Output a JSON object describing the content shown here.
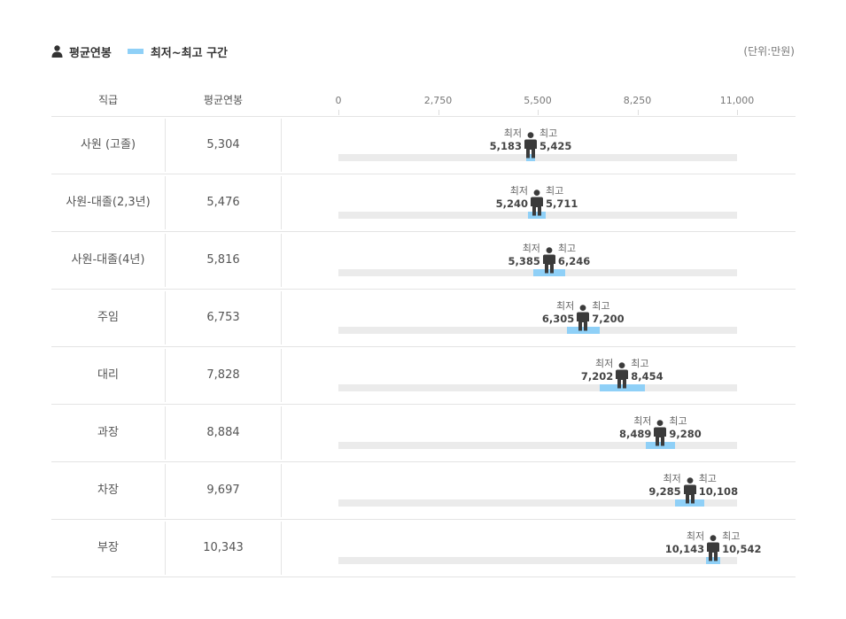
{
  "legend": {
    "avg_label": "평균연봉",
    "range_label": "최저~최고 구간",
    "person_icon": "person-icon",
    "range_color": "#8fd0f7"
  },
  "unit_label": "(단위:만원)",
  "headers": {
    "rank": "직급",
    "avg": "평균연봉"
  },
  "row_labels": {
    "min": "최저",
    "max": "최고"
  },
  "chart_data": {
    "type": "range",
    "xlim": [
      0,
      11000
    ],
    "ticks": [
      0,
      2750,
      5500,
      8250,
      11000
    ],
    "tick_labels": [
      "0",
      "2,750",
      "5,500",
      "8,250",
      "11,000"
    ],
    "rows": [
      {
        "rank": "사원 (고졸)",
        "avg": 5304,
        "avg_text": "5,304",
        "min": 5183,
        "min_text": "5,183",
        "max": 5425,
        "max_text": "5,425"
      },
      {
        "rank": "사원-대졸(2,3년)",
        "avg": 5476,
        "avg_text": "5,476",
        "min": 5240,
        "min_text": "5,240",
        "max": 5711,
        "max_text": "5,711"
      },
      {
        "rank": "사원-대졸(4년)",
        "avg": 5816,
        "avg_text": "5,816",
        "min": 5385,
        "min_text": "5,385",
        "max": 6246,
        "max_text": "6,246"
      },
      {
        "rank": "주임",
        "avg": 6753,
        "avg_text": "6,753",
        "min": 6305,
        "min_text": "6,305",
        "max": 7200,
        "max_text": "7,200"
      },
      {
        "rank": "대리",
        "avg": 7828,
        "avg_text": "7,828",
        "min": 7202,
        "min_text": "7,202",
        "max": 8454,
        "max_text": "8,454"
      },
      {
        "rank": "과장",
        "avg": 8884,
        "avg_text": "8,884",
        "min": 8489,
        "min_text": "8,489",
        "max": 9280,
        "max_text": "9,280"
      },
      {
        "rank": "차장",
        "avg": 9697,
        "avg_text": "9,697",
        "min": 9285,
        "min_text": "9,285",
        "max": 10108,
        "max_text": "10,108"
      },
      {
        "rank": "부장",
        "avg": 10343,
        "avg_text": "10,343",
        "min": 10143,
        "min_text": "10,143",
        "max": 10542,
        "max_text": "10,542"
      }
    ]
  }
}
